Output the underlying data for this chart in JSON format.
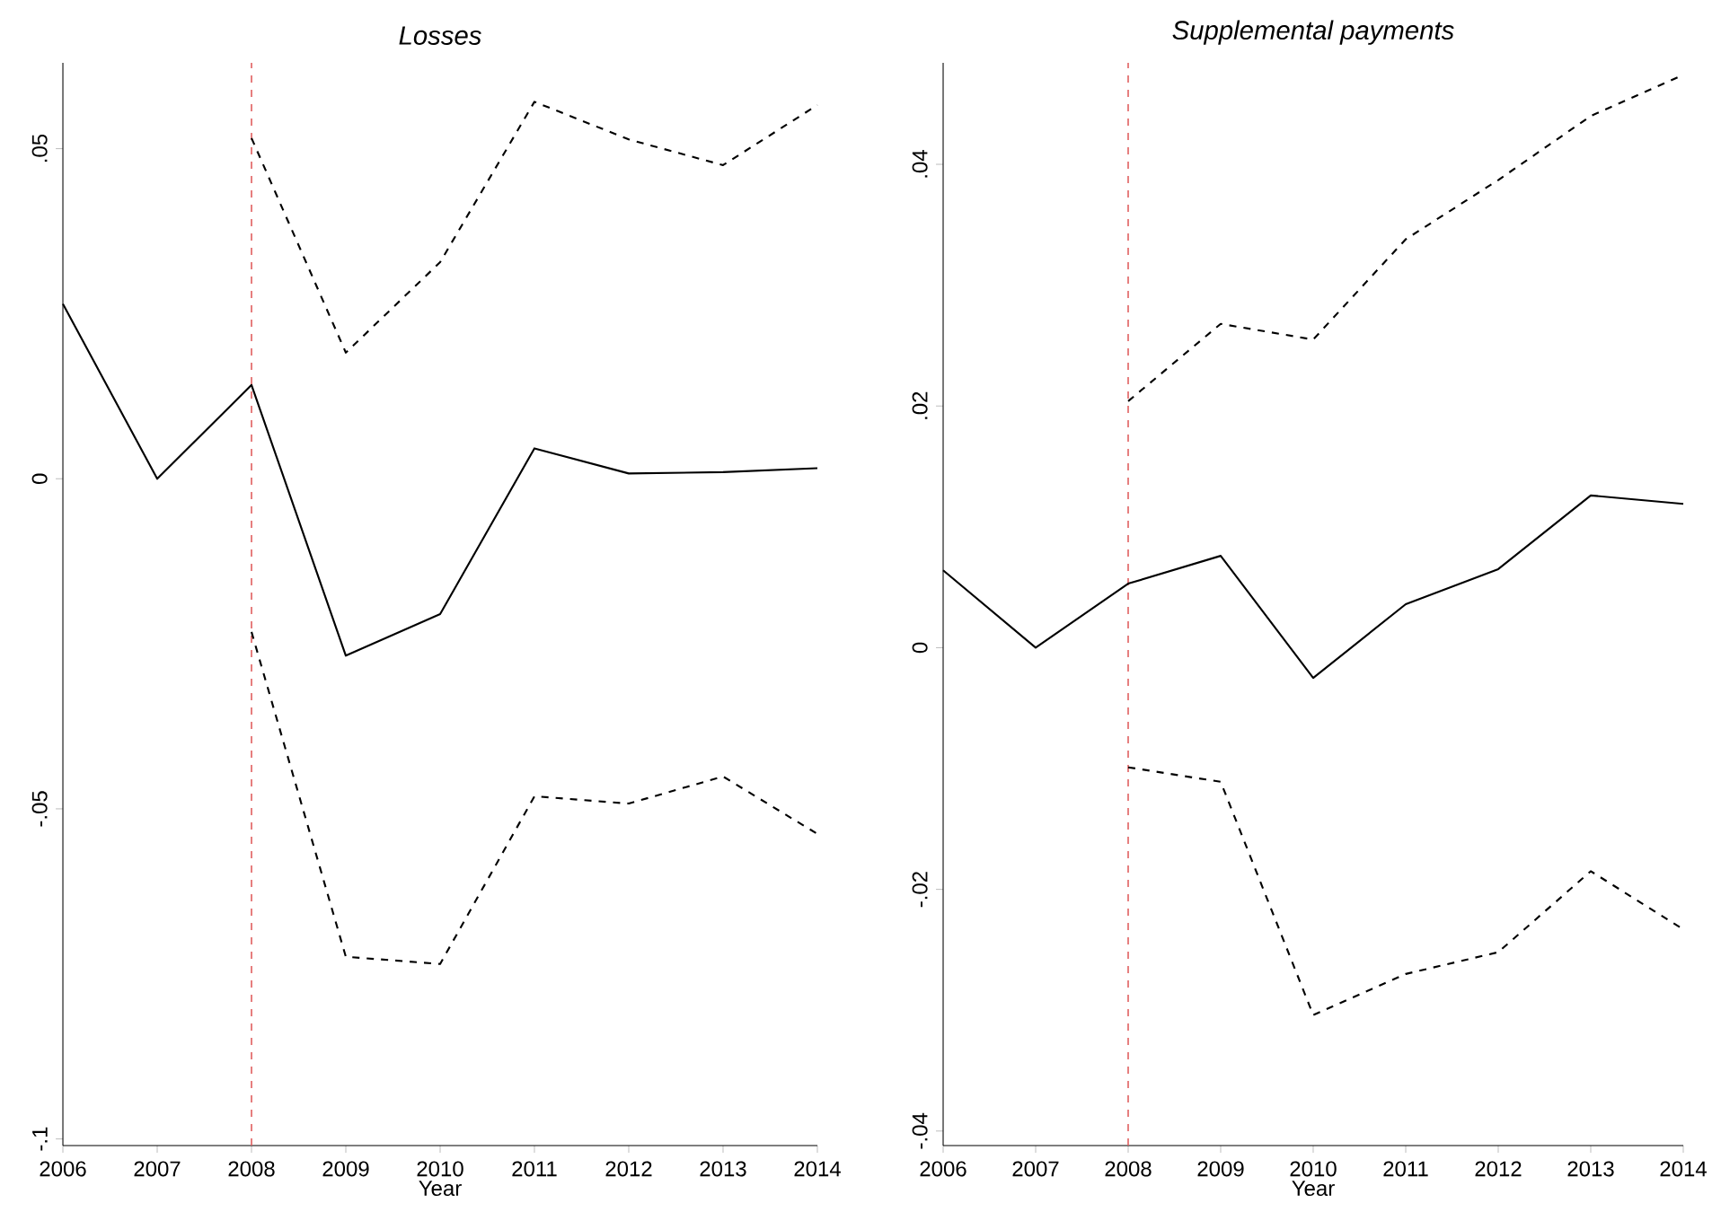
{
  "chart_data": [
    {
      "type": "line",
      "title": "Losses",
      "xlabel": "Year",
      "x": [
        2006,
        2007,
        2008,
        2009,
        2010,
        2011,
        2012,
        2013,
        2014
      ],
      "series": [
        {
          "color": "#000000",
          "line_style": "solid",
          "values": [
            0.0265,
            0,
            0.0142,
            -0.0268,
            -0.0205,
            0.0046,
            0.0008,
            0.001,
            0.0016
          ]
        },
        {
          "color": "#000000",
          "line_style": "dashed",
          "values": [
            null,
            null,
            0.0516,
            0.0191,
            0.0328,
            0.0571,
            0.0514,
            0.0475,
            0.0566
          ]
        },
        {
          "color": "#000000",
          "line_style": "dashed",
          "values": [
            null,
            null,
            -0.0232,
            -0.0724,
            -0.0735,
            -0.0481,
            -0.0492,
            -0.0451,
            -0.0538
          ]
        }
      ],
      "xlim": [
        2006,
        2014
      ],
      "xticks": [
        2006,
        2007,
        2008,
        2009,
        2010,
        2011,
        2012,
        2013,
        2014
      ],
      "ylim": [
        -0.101,
        0.063
      ],
      "yticks": [
        {
          "value": -0.1,
          "label": "-.1"
        },
        {
          "value": -0.05,
          "label": "-.05"
        },
        0,
        {
          "value": 0.05,
          "label": ".05"
        }
      ],
      "ref_lines": [
        {
          "axis": "x",
          "value": 2008,
          "color": "#e06060",
          "line_style": "dashed"
        }
      ]
    },
    {
      "type": "line",
      "title": "Supplemental payments",
      "xlabel": "Year",
      "x": [
        2006,
        2007,
        2008,
        2009,
        2010,
        2011,
        2012,
        2013,
        2014
      ],
      "series": [
        {
          "color": "#000000",
          "line_style": "solid",
          "values": [
            0.0064,
            0,
            0.0053,
            0.0076,
            -0.0025,
            0.0036,
            0.0065,
            0.0126,
            0.0119
          ]
        },
        {
          "color": "#000000",
          "line_style": "dashed",
          "values": [
            null,
            null,
            0.0204,
            0.0268,
            0.0255,
            0.0338,
            0.0387,
            0.044,
            0.0474
          ]
        },
        {
          "color": "#000000",
          "line_style": "dashed",
          "values": [
            null,
            null,
            -0.0099,
            -0.0111,
            -0.0304,
            -0.027,
            -0.0252,
            -0.0185,
            -0.0233
          ]
        }
      ],
      "xlim": [
        2006,
        2014
      ],
      "xticks": [
        2006,
        2007,
        2008,
        2009,
        2010,
        2011,
        2012,
        2013,
        2014
      ],
      "ylim": [
        -0.0412,
        0.0484
      ],
      "yticks": [
        {
          "value": -0.04,
          "label": "-.04"
        },
        {
          "value": -0.02,
          "label": "-.02"
        },
        0,
        {
          "value": 0.02,
          "label": ".02"
        },
        {
          "value": 0.04,
          "label": ".04"
        }
      ],
      "ref_lines": [
        {
          "axis": "x",
          "value": 2008,
          "color": "#e06060",
          "line_style": "dashed"
        }
      ]
    }
  ]
}
